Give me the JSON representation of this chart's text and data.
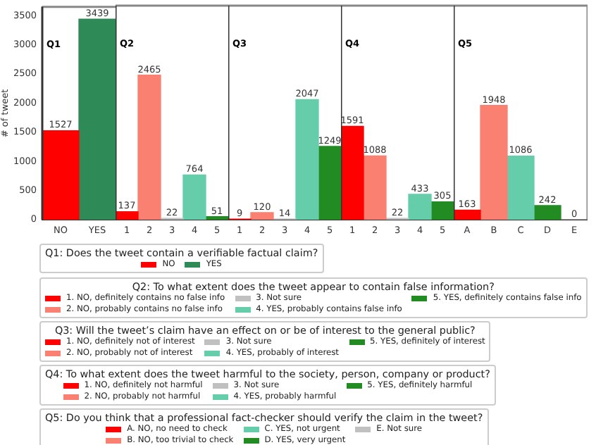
{
  "chart_data": [
    {
      "type": "bar",
      "categories": [
        "NO",
        "YES"
      ],
      "ylabel": "# of tweet",
      "legend_title": "Q1: Does the tweet contain a verifiable factual claim?",
      "annotations": [
        "Q1"
      ],
      "ylim": [
        0,
        3650
      ],
      "yticks": [
        0,
        500,
        1000,
        1500,
        2000,
        2500,
        3000,
        3500
      ],
      "data_labels": true,
      "legend": "bottom",
      "series": [
        {
          "name": "NO",
          "color": "#ff0000",
          "values": [
            1527,
            null
          ]
        },
        {
          "name": "YES",
          "color": "#2e8b57",
          "values": [
            null,
            3439
          ]
        }
      ]
    },
    {
      "type": "bar",
      "categories": [
        "1",
        "2",
        "3",
        "4",
        "5"
      ],
      "legend_title": "Q2: To what extent does the tweet appear to contain false information?",
      "annotations": [
        "Q2"
      ],
      "ylim": [
        0,
        3650
      ],
      "tick_labels": "x",
      "data_labels": true,
      "legend": "bottom",
      "series": [
        {
          "name": "1. NO, definitely contains no false info",
          "color": "#ff0000",
          "values": [
            137,
            null,
            null,
            null,
            null
          ]
        },
        {
          "name": "2. NO, probably contains no false info",
          "color": "#fa8072",
          "values": [
            null,
            2465,
            null,
            null,
            null
          ]
        },
        {
          "name": "3. Not sure",
          "color": "#c0c0c0",
          "values": [
            null,
            null,
            22,
            null,
            null
          ]
        },
        {
          "name": "4. YES, probably contains false info",
          "color": "#66cdaa",
          "values": [
            null,
            null,
            null,
            764,
            null
          ]
        },
        {
          "name": "5. YES, definitely contains false info",
          "color": "#228b22",
          "values": [
            null,
            null,
            null,
            null,
            51
          ]
        }
      ]
    },
    {
      "type": "bar",
      "categories": [
        "1",
        "2",
        "3",
        "4",
        "5"
      ],
      "legend_title": "Q3: Will the tweet’s claim have an effect on or be of interest to the general public?",
      "annotations": [
        "Q3"
      ],
      "ylim": [
        0,
        3650
      ],
      "tick_labels": "x",
      "data_labels": true,
      "legend": "bottom",
      "series": [
        {
          "name": "1. NO, definitely not of interest",
          "color": "#ff0000",
          "values": [
            9,
            null,
            null,
            null,
            null
          ]
        },
        {
          "name": "2. NO, probably not of interest",
          "color": "#fa8072",
          "values": [
            null,
            120,
            null,
            null,
            null
          ]
        },
        {
          "name": "3. Not sure",
          "color": "#c0c0c0",
          "values": [
            null,
            null,
            14,
            null,
            null
          ]
        },
        {
          "name": "4. YES, probably of interest",
          "color": "#66cdaa",
          "values": [
            null,
            null,
            null,
            2047,
            null
          ]
        },
        {
          "name": "5. YES, definitely of interest",
          "color": "#228b22",
          "values": [
            null,
            null,
            null,
            null,
            1249
          ]
        }
      ]
    },
    {
      "type": "bar",
      "categories": [
        "1",
        "2",
        "3",
        "4",
        "5"
      ],
      "legend_title": "Q4: To what extent does the tweet harmful to the society, person, company or product?",
      "annotations": [
        "Q4"
      ],
      "ylim": [
        0,
        3650
      ],
      "tick_labels": "x",
      "data_labels": true,
      "legend": "bottom",
      "series": [
        {
          "name": "1. NO, definitely not harmful",
          "color": "#ff0000",
          "values": [
            1591,
            null,
            null,
            null,
            null
          ]
        },
        {
          "name": "2. NO, probably not harmful",
          "color": "#fa8072",
          "values": [
            null,
            1088,
            null,
            null,
            null
          ]
        },
        {
          "name": "3. Not sure",
          "color": "#c0c0c0",
          "values": [
            null,
            null,
            22,
            null,
            null
          ]
        },
        {
          "name": "4. YES, probably harmful",
          "color": "#66cdaa",
          "values": [
            null,
            null,
            null,
            433,
            null
          ]
        },
        {
          "name": "5. YES, definitely harmful",
          "color": "#228b22",
          "values": [
            null,
            null,
            null,
            null,
            305
          ]
        }
      ]
    },
    {
      "type": "bar",
      "categories": [
        "A",
        "B",
        "C",
        "D",
        "E"
      ],
      "legend_title": "Q5: Do you think that a professional fact-checker should verify the claim in the tweet?",
      "annotations": [
        "Q5"
      ],
      "ylim": [
        0,
        3650
      ],
      "tick_labels": "x",
      "data_labels": true,
      "legend": "bottom",
      "series": [
        {
          "name": "A. NO, no need to check",
          "color": "#ff0000",
          "values": [
            163,
            null,
            null,
            null,
            null
          ]
        },
        {
          "name": "B. NO, too trivial to check",
          "color": "#fa8072",
          "values": [
            null,
            1948,
            null,
            null,
            null
          ]
        },
        {
          "name": "C. YES, not urgent",
          "color": "#66cdaa",
          "values": [
            null,
            null,
            1086,
            null,
            null
          ]
        },
        {
          "name": "D. YES, very urgent",
          "color": "#228b22",
          "values": [
            null,
            null,
            null,
            242,
            null
          ]
        },
        {
          "name": "E. Not sure",
          "color": "#c0c0c0",
          "values": [
            null,
            null,
            null,
            null,
            0
          ]
        }
      ]
    }
  ]
}
